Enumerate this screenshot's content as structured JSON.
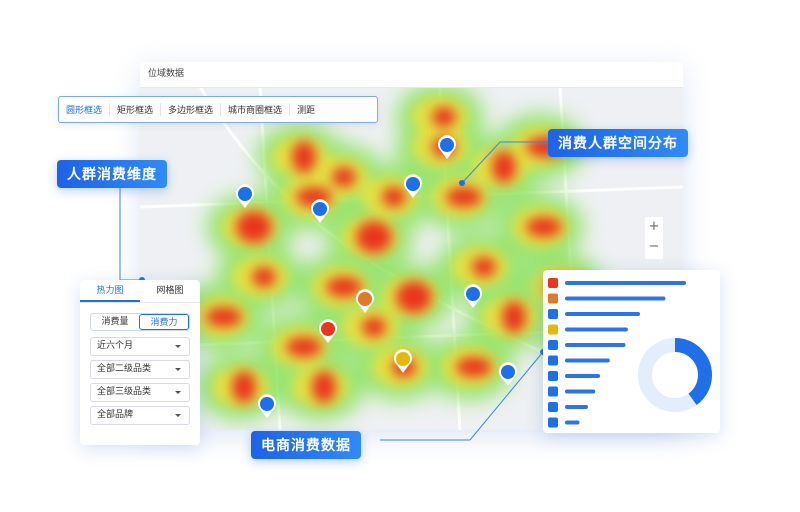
{
  "window": {
    "title": "位域数据"
  },
  "toolbar": [
    "圆形框选",
    "矩形框选",
    "多边形框选",
    "城市商圈框选",
    "测距"
  ],
  "callouts": {
    "dimension": "人群消费维度",
    "distribution": "消费人群空间分布",
    "ecommerce": "电商消费数据"
  },
  "left_panel": {
    "tabs": [
      "热力图",
      "网格图"
    ],
    "toggle": [
      "消费量",
      "消费力"
    ],
    "dropdowns": [
      "近六个月",
      "全部二级品类",
      "全部三级品类",
      "全部品牌"
    ]
  },
  "map_controls": [
    "+",
    "−"
  ],
  "right_panel": {
    "bars": [
      100,
      83,
      62,
      52,
      50,
      37,
      29,
      25,
      19,
      12
    ],
    "donut_share": 40
  }
}
